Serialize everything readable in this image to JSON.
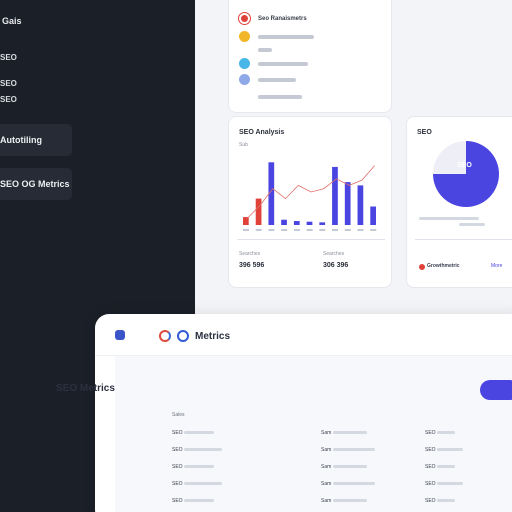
{
  "sidebar": {
    "title": "Gais",
    "lines": [
      "SEO",
      "SEO",
      "SEO"
    ],
    "cards": [
      {
        "label": "Autotiling"
      },
      {
        "label": "SEO OG Metrics"
      }
    ]
  },
  "top_list": {
    "header": "Seo Ranaismetrs",
    "dot_colors": [
      "#e0423a",
      "#f2b728",
      "#49b6e8",
      "#8fa8e8",
      "#ffffff"
    ]
  },
  "chart_card": {
    "title": "SEO Analysis",
    "subtitle": "Sub",
    "stat1_label": "Searches",
    "stat1_value": "396 596",
    "stat2_label": "Searches",
    "stat2_value": "306 396",
    "chart_data": {
      "type": "bar",
      "values": [
        12,
        40,
        95,
        8,
        6,
        5,
        4,
        88,
        65,
        60,
        28
      ],
      "colors": [
        "#e0423a",
        "#e0423a",
        "#4a45e0",
        "#4a45e0",
        "#4a45e0",
        "#4a45e0",
        "#4a45e0",
        "#4a45e0",
        "#4a45e0",
        "#4a45e0",
        "#4a45e0"
      ],
      "line": [
        10,
        30,
        55,
        40,
        60,
        50,
        55,
        70,
        60,
        68,
        90
      ],
      "ylim": [
        0,
        100
      ]
    }
  },
  "pie_card": {
    "title": "SEO",
    "center_label": "SEO",
    "legend_label": "Growthmetric",
    "link": "More",
    "chart_data": {
      "type": "pie",
      "values": [
        75,
        25
      ],
      "colors": [
        "#4a45e0",
        "#eeeff6"
      ]
    }
  },
  "front": {
    "title": "Metrics",
    "section_title": "SEO Metrics",
    "col_header": "Sales",
    "rows": [
      {
        "c1": "SEO",
        "c2": "Sam",
        "c3": "SEO"
      },
      {
        "c1": "SEO",
        "c2": "Sam",
        "c3": "SEO"
      },
      {
        "c1": "SEO",
        "c2": "Sam",
        "c3": "SEO"
      },
      {
        "c1": "SEO",
        "c2": "Sam",
        "c3": "SEO"
      },
      {
        "c1": "SEO",
        "c2": "Sam",
        "c3": "SEO"
      }
    ]
  }
}
